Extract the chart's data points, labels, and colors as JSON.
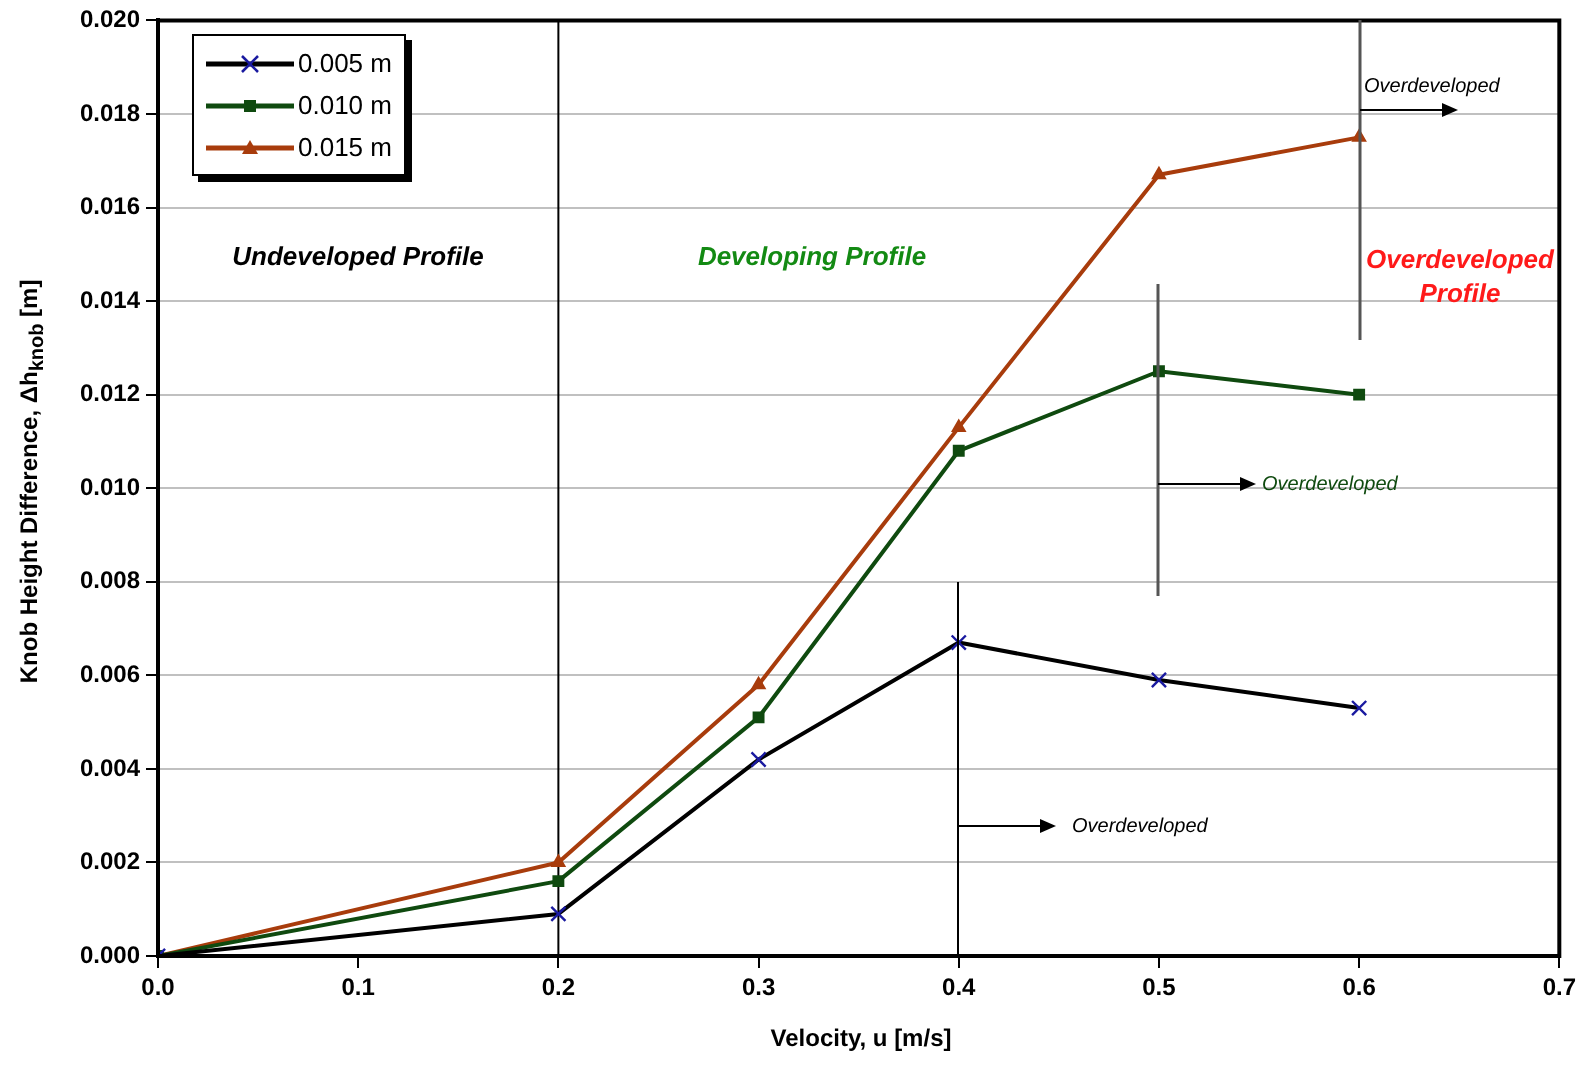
{
  "chart_data": {
    "type": "line",
    "xlabel": "Velocity, u [m/s]",
    "ylabel": "Knob Height Difference, Δh$_{knob}$ [m]",
    "x": [
      0,
      0.2,
      0.3,
      0.4,
      0.5,
      0.6
    ],
    "series": [
      {
        "name": "0.005 m",
        "color": "#000000",
        "marker": "cross",
        "values": [
          0,
          0.0009,
          0.0042,
          0.0067,
          0.0059,
          0.0053
        ]
      },
      {
        "name": "0.010 m",
        "color": "#0f4a0f",
        "marker": "square",
        "values": [
          0,
          0.0016,
          0.0051,
          0.0108,
          0.0125,
          0.012
        ]
      },
      {
        "name": "0.015 m",
        "color": "#a83c0c",
        "marker": "triangle",
        "values": [
          0,
          0.002,
          0.0058,
          0.0113,
          0.0167,
          0.0175
        ]
      }
    ],
    "xlim": [
      0,
      0.7
    ],
    "xticks": [
      {
        "value": 0,
        "label": "0.0"
      },
      {
        "value": 0.1,
        "label": "0.1"
      },
      {
        "value": 0.2,
        "label": "0.2"
      },
      {
        "value": 0.3,
        "label": "0.3"
      },
      {
        "value": 0.4,
        "label": "0.4"
      },
      {
        "value": 0.5,
        "label": "0.5"
      },
      {
        "value": 0.6,
        "label": "0.6"
      },
      {
        "value": 0.7,
        "label": "0.7"
      }
    ],
    "ylim": [
      0,
      0.02
    ],
    "yticks": [
      {
        "value": 0,
        "label": "0.000"
      },
      {
        "value": 0.002,
        "label": "0.002"
      },
      {
        "value": 0.004,
        "label": "0.004"
      },
      {
        "value": 0.006,
        "label": "0.006"
      },
      {
        "value": 0.008,
        "label": "0.008"
      },
      {
        "value": 0.01,
        "label": "0.010"
      },
      {
        "value": 0.012,
        "label": "0.012"
      },
      {
        "value": 0.014,
        "label": "0.014"
      },
      {
        "value": 0.016,
        "label": "0.016"
      },
      {
        "value": 0.018,
        "label": "0.018"
      },
      {
        "value": 0.02,
        "label": "0.020"
      }
    ],
    "ref_lines": [
      {
        "axis": "x",
        "value": 0.2,
        "color": "#000000"
      }
    ],
    "annotations": [
      "Undeveloped Profile",
      "Developing Profile",
      "Overdeveloped Profile",
      "Overdeveloped",
      "Overdeveloped",
      "Overdeveloped"
    ],
    "grid": "y",
    "legend": "top left",
    "line_style": "solid"
  }
}
